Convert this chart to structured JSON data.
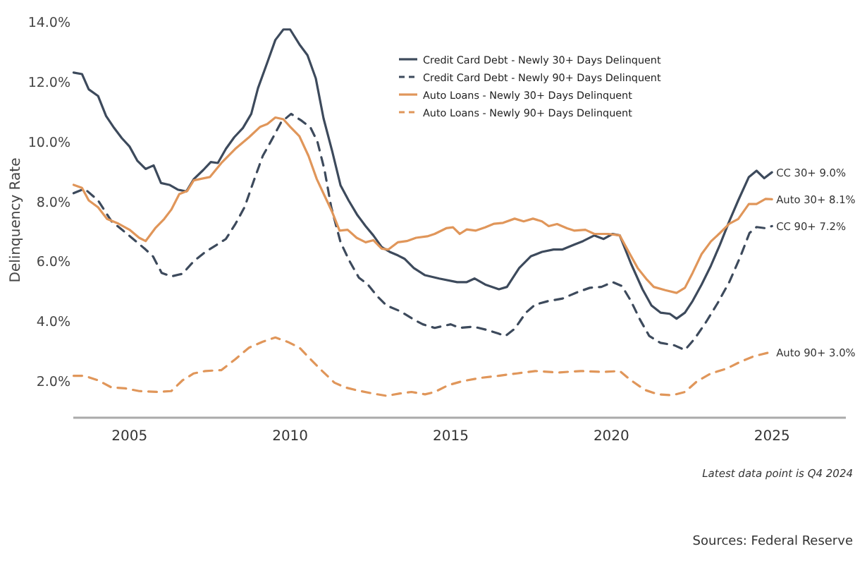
{
  "chart_data": {
    "type": "line",
    "ylabel": "Delinquency Rate",
    "xlim": [
      2003.25,
      2027.3
    ],
    "xticks": [
      2005,
      2010,
      2015,
      2020,
      2025
    ],
    "ylim": [
      0.8,
      14.0
    ],
    "yticks": [
      {
        "value": 2,
        "label": "2.0%"
      },
      {
        "value": 4,
        "label": "4.0%"
      },
      {
        "value": 6,
        "label": "6.0%"
      },
      {
        "value": 8,
        "label": "8.0%"
      },
      {
        "value": 10,
        "label": "10.0%"
      },
      {
        "value": 12,
        "label": "12.0%"
      },
      {
        "value": 14,
        "label": "14.0%"
      }
    ],
    "legend": "top",
    "grid": false,
    "series": [
      {
        "name": "Credit Card Debt - Newly 30+ Days Delinquent",
        "color": "#3d4a5c",
        "value_labels": [
          null,
          null,
          null,
          null,
          null,
          null,
          null,
          null,
          null,
          null,
          null,
          null,
          null,
          null,
          null,
          null,
          null,
          null,
          null,
          null,
          null,
          null,
          null,
          null,
          null,
          null,
          null,
          null,
          null,
          null,
          null,
          null,
          null,
          null,
          null,
          null,
          null,
          null,
          null,
          null,
          null,
          null,
          null,
          null,
          null,
          null,
          null,
          null,
          null,
          null,
          null,
          null,
          null,
          null,
          null,
          null,
          null,
          null,
          null,
          null,
          null,
          null,
          null,
          null,
          null,
          null,
          null,
          null,
          null,
          null,
          null,
          null,
          null,
          null,
          null,
          null,
          null,
          null,
          "CC 30+ 9.0%"
        ],
        "line_style": "solid",
        "x": [
          2003.26,
          2003.52,
          2003.73,
          2004.02,
          2004.27,
          2004.52,
          2004.76,
          2005.0,
          2005.24,
          2005.5,
          2005.75,
          2005.98,
          2006.24,
          2006.5,
          2006.77,
          2007.0,
          2007.3,
          2007.53,
          2007.75,
          2008.0,
          2008.26,
          2008.53,
          2008.79,
          2009.0,
          2009.29,
          2009.54,
          2009.79,
          2010.0,
          2010.29,
          2010.54,
          2010.8,
          2011.04,
          2011.31,
          2011.57,
          2011.82,
          2012.08,
          2012.35,
          2012.59,
          2012.85,
          2013.1,
          2013.36,
          2013.56,
          2013.85,
          2014.2,
          2014.64,
          2015.2,
          2015.5,
          2015.74,
          2016.07,
          2016.5,
          2016.75,
          2017.13,
          2017.49,
          2017.84,
          2018.2,
          2018.48,
          2018.84,
          2019.12,
          2019.47,
          2019.76,
          2020.04,
          2020.26,
          2020.61,
          2020.97,
          2021.25,
          2021.53,
          2021.82,
          2022.03,
          2022.29,
          2022.53,
          2022.81,
          2023.1,
          2023.38,
          2023.67,
          2023.95,
          2024.28,
          2024.52,
          2024.76,
          2025.0
        ],
        "values": [
          12.33,
          12.28,
          11.77,
          11.55,
          10.88,
          10.48,
          10.14,
          9.86,
          9.39,
          9.11,
          9.23,
          8.64,
          8.58,
          8.42,
          8.36,
          8.77,
          9.08,
          9.34,
          9.31,
          9.78,
          10.17,
          10.48,
          10.95,
          11.81,
          12.67,
          13.42,
          13.77,
          13.77,
          13.27,
          12.91,
          12.13,
          10.8,
          9.7,
          8.56,
          8.06,
          7.59,
          7.2,
          6.89,
          6.5,
          6.34,
          6.22,
          6.11,
          5.8,
          5.56,
          5.45,
          5.33,
          5.33,
          5.45,
          5.25,
          5.09,
          5.17,
          5.8,
          6.19,
          6.34,
          6.42,
          6.42,
          6.58,
          6.7,
          6.89,
          6.77,
          6.94,
          6.89,
          5.95,
          5.09,
          4.55,
          4.31,
          4.27,
          4.11,
          4.31,
          4.7,
          5.25,
          5.88,
          6.58,
          7.36,
          8.06,
          8.84,
          9.05,
          8.8,
          9.0
        ]
      },
      {
        "name": "Credit Card Debt - Newly 90+ Days Delinquent",
        "color": "#3d4a5c",
        "value_labels": [
          null,
          null,
          null,
          null,
          null,
          null,
          null,
          null,
          null,
          null,
          null,
          null,
          null,
          null,
          null,
          null,
          null,
          null,
          null,
          null,
          null,
          null,
          null,
          null,
          null,
          null,
          null,
          null,
          null,
          null,
          null,
          null,
          null,
          null,
          null,
          null,
          null,
          null,
          null,
          null,
          null,
          null,
          null,
          null,
          null,
          null,
          null,
          null,
          null,
          null,
          null,
          null,
          null,
          null,
          null,
          null,
          null,
          null,
          null,
          null,
          null,
          null,
          null,
          null,
          null,
          null,
          null,
          "CC 90+ 7.2%"
        ],
        "line_style": "dashed",
        "x": [
          2003.26,
          2003.6,
          2004.02,
          2004.44,
          2004.8,
          2005.16,
          2005.5,
          2005.73,
          2006.0,
          2006.3,
          2006.65,
          2007.0,
          2007.36,
          2007.72,
          2008.0,
          2008.3,
          2008.58,
          2008.86,
          2009.15,
          2009.43,
          2009.72,
          2010.03,
          2010.36,
          2010.64,
          2010.85,
          2011.07,
          2011.28,
          2011.57,
          2011.85,
          2012.14,
          2012.42,
          2012.71,
          2013.0,
          2013.42,
          2013.85,
          2014.13,
          2014.5,
          2015.0,
          2015.28,
          2015.71,
          2016.14,
          2016.49,
          2016.7,
          2016.99,
          2017.34,
          2017.63,
          2018.05,
          2018.48,
          2018.91,
          2019.33,
          2019.69,
          2020.04,
          2020.33,
          2020.61,
          2020.89,
          2021.18,
          2021.53,
          2021.96,
          2022.29,
          2022.6,
          2022.95,
          2023.31,
          2023.67,
          2024.02,
          2024.3,
          2024.52,
          2024.8,
          2025.0
        ],
        "values": [
          8.3,
          8.45,
          8.06,
          7.36,
          7.05,
          6.73,
          6.42,
          6.19,
          5.64,
          5.52,
          5.61,
          6.03,
          6.34,
          6.58,
          6.77,
          7.28,
          7.83,
          8.69,
          9.55,
          10.09,
          10.67,
          10.95,
          10.72,
          10.48,
          10.02,
          9.08,
          7.83,
          6.66,
          6.03,
          5.48,
          5.25,
          4.86,
          4.55,
          4.36,
          4.08,
          3.92,
          3.8,
          3.92,
          3.8,
          3.84,
          3.73,
          3.61,
          3.53,
          3.77,
          4.31,
          4.58,
          4.7,
          4.78,
          4.98,
          5.14,
          5.17,
          5.33,
          5.2,
          4.7,
          4.08,
          3.53,
          3.3,
          3.22,
          3.06,
          3.45,
          4.0,
          4.63,
          5.33,
          6.19,
          6.97,
          7.17,
          7.13,
          7.2
        ]
      },
      {
        "name": "Auto Loans - Newly 30+ Days Delinquent",
        "color": "#e0965a",
        "value_labels": [
          null,
          null,
          null,
          null,
          null,
          null,
          null,
          null,
          null,
          null,
          null,
          null,
          null,
          null,
          null,
          null,
          null,
          null,
          null,
          null,
          null,
          null,
          null,
          null,
          null,
          null,
          null,
          null,
          null,
          null,
          null,
          null,
          null,
          null,
          null,
          null,
          null,
          null,
          null,
          null,
          null,
          null,
          null,
          null,
          null,
          null,
          null,
          null,
          null,
          null,
          null,
          null,
          null,
          null,
          null,
          null,
          null,
          null,
          null,
          null,
          null,
          null,
          null,
          null,
          null,
          null,
          null,
          null,
          null,
          null,
          null,
          null,
          null,
          null,
          null,
          null,
          null,
          "Auto 30+ 8.1%"
        ],
        "line_style": "solid",
        "x": [
          2003.26,
          2003.52,
          2003.73,
          2004.02,
          2004.3,
          2004.66,
          2005.0,
          2005.3,
          2005.5,
          2005.8,
          2006.08,
          2006.3,
          2006.55,
          2006.8,
          2007.0,
          2007.5,
          2007.86,
          2008.29,
          2008.72,
          2009.07,
          2009.29,
          2009.54,
          2009.79,
          2010.0,
          2010.29,
          2010.57,
          2010.83,
          2011.07,
          2011.31,
          2011.54,
          2011.79,
          2012.07,
          2012.35,
          2012.59,
          2012.85,
          2013.06,
          2013.35,
          2013.63,
          2013.92,
          2014.27,
          2014.5,
          2014.86,
          2015.07,
          2015.28,
          2015.5,
          2015.78,
          2016.07,
          2016.35,
          2016.63,
          2016.99,
          2017.27,
          2017.56,
          2017.84,
          2018.05,
          2018.31,
          2018.62,
          2018.84,
          2019.19,
          2019.47,
          2019.9,
          2020.26,
          2020.54,
          2020.82,
          2021.11,
          2021.32,
          2021.68,
          2022.03,
          2022.29,
          2022.53,
          2022.81,
          2023.1,
          2023.38,
          2023.67,
          2023.95,
          2024.28,
          2024.52,
          2024.8,
          2025.0
        ],
        "values": [
          8.58,
          8.48,
          8.06,
          7.83,
          7.44,
          7.28,
          7.08,
          6.81,
          6.7,
          7.13,
          7.44,
          7.75,
          8.27,
          8.38,
          8.73,
          8.84,
          9.31,
          9.78,
          10.17,
          10.52,
          10.61,
          10.83,
          10.77,
          10.52,
          10.2,
          9.55,
          8.77,
          8.22,
          7.67,
          7.05,
          7.08,
          6.81,
          6.66,
          6.73,
          6.45,
          6.42,
          6.66,
          6.7,
          6.81,
          6.86,
          6.94,
          7.13,
          7.16,
          6.94,
          7.09,
          7.05,
          7.16,
          7.28,
          7.31,
          7.45,
          7.36,
          7.45,
          7.36,
          7.2,
          7.27,
          7.13,
          7.05,
          7.08,
          6.94,
          6.94,
          6.89,
          6.34,
          5.8,
          5.41,
          5.17,
          5.06,
          4.97,
          5.14,
          5.64,
          6.27,
          6.69,
          6.97,
          7.28,
          7.44,
          7.94,
          7.94,
          8.11,
          8.1
        ]
      },
      {
        "name": "Auto Loans - Newly 90+ Days Delinquent",
        "color": "#e0965a",
        "value_labels": [
          null,
          null,
          null,
          null,
          null,
          null,
          null,
          null,
          null,
          null,
          null,
          null,
          null,
          null,
          null,
          null,
          null,
          null,
          null,
          null,
          null,
          null,
          null,
          null,
          null,
          null,
          null,
          null,
          null,
          null,
          null,
          null,
          null,
          null,
          null,
          null,
          null,
          null,
          null,
          null,
          null,
          null,
          null,
          null,
          null,
          null,
          null,
          null,
          null,
          "Auto 90+ 3.0%"
        ],
        "line_style": "dashed",
        "x": [
          2003.26,
          2003.6,
          2004.02,
          2004.44,
          2004.87,
          2005.3,
          2005.87,
          2006.3,
          2006.65,
          2007.0,
          2007.36,
          2007.86,
          2008.29,
          2008.72,
          2009.15,
          2009.54,
          2009.93,
          2010.29,
          2010.64,
          2011.0,
          2011.38,
          2011.72,
          2012.14,
          2012.57,
          2013.0,
          2013.42,
          2013.78,
          2014.2,
          2014.5,
          2014.93,
          2015.36,
          2015.92,
          2016.49,
          2017.06,
          2017.63,
          2018.34,
          2019.05,
          2019.76,
          2020.26,
          2020.61,
          2021.04,
          2021.46,
          2021.89,
          2022.29,
          2022.67,
          2023.1,
          2023.59,
          2024.02,
          2024.45,
          2025.0
        ],
        "values": [
          2.2,
          2.2,
          2.05,
          1.81,
          1.78,
          1.69,
          1.66,
          1.69,
          2.05,
          2.28,
          2.36,
          2.39,
          2.75,
          3.14,
          3.34,
          3.48,
          3.33,
          3.14,
          2.75,
          2.36,
          1.97,
          1.81,
          1.7,
          1.61,
          1.53,
          1.61,
          1.66,
          1.58,
          1.66,
          1.89,
          2.02,
          2.13,
          2.2,
          2.28,
          2.36,
          2.31,
          2.36,
          2.33,
          2.36,
          2.05,
          1.73,
          1.58,
          1.55,
          1.66,
          2.02,
          2.28,
          2.44,
          2.67,
          2.86,
          3.0
        ]
      }
    ],
    "annotations": [
      "Latest data point is Q4 2024",
      "Sources: Federal Reserve"
    ]
  }
}
